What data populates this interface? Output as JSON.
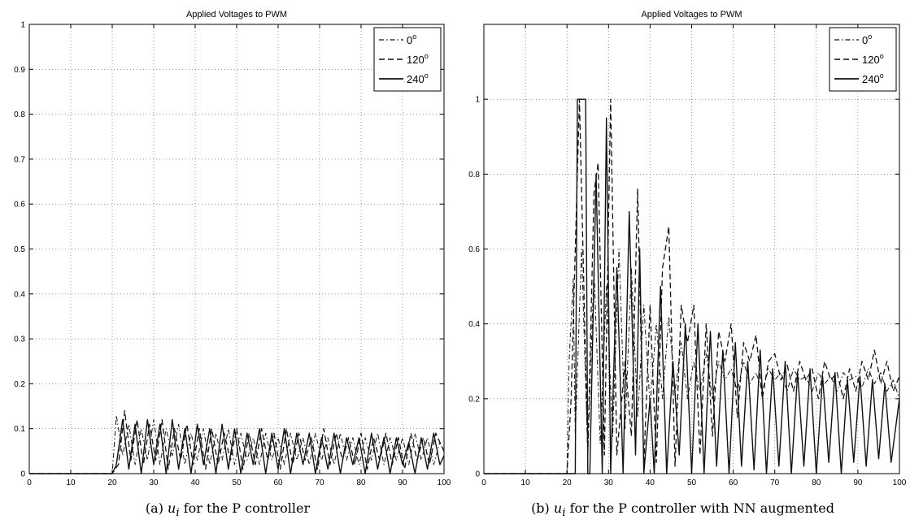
{
  "chart_data": [
    {
      "type": "line",
      "title": "Applied Voltages to PWM",
      "caption_prefix": "(a)",
      "caption_var": "u",
      "caption_sub": "i",
      "caption_text": "for the P controller",
      "xlim": [
        0,
        100
      ],
      "ylim": [
        0,
        1
      ],
      "xticks": [
        0,
        10,
        20,
        30,
        40,
        50,
        60,
        70,
        80,
        90,
        100
      ],
      "yticks": [
        0,
        0.1,
        0.2,
        0.3,
        0.4,
        0.5,
        0.6,
        0.7,
        0.8,
        0.9,
        1
      ],
      "ytick_labels": [
        "0",
        "0.1",
        "0.2",
        "0.3",
        "0.4",
        "0.5",
        "0.6",
        "0.7",
        "0.8",
        "0.9",
        "1"
      ],
      "grid": true,
      "legend_position": "top-right",
      "series": [
        {
          "name": "0",
          "degree": "o",
          "style": "dashdot",
          "x": [
            0,
            20,
            21,
            22.5,
            24,
            25.5,
            27,
            28.5,
            30,
            31.5,
            33,
            34.5,
            36,
            37.5,
            39,
            40.5,
            42,
            43.5,
            45,
            46.5,
            48,
            49.5,
            51,
            52.5,
            54,
            55.5,
            57,
            58.5,
            60,
            61.5,
            63,
            64.5,
            66,
            67.5,
            69,
            70.5,
            72,
            73.5,
            75,
            76.5,
            78,
            79.5,
            81,
            82.5,
            84,
            85.5,
            87,
            88.5,
            90,
            91.5,
            93,
            94.5,
            96,
            97.5,
            99,
            100
          ],
          "y": [
            0,
            0,
            0.13,
            0.04,
            0.11,
            0.02,
            0.1,
            0.03,
            0.12,
            0.02,
            0.1,
            0.04,
            0.11,
            0.02,
            0.09,
            0.03,
            0.1,
            0.02,
            0.09,
            0.03,
            0.1,
            0.02,
            0.09,
            0.03,
            0.08,
            0.02,
            0.09,
            0.03,
            0.08,
            0.02,
            0.09,
            0.03,
            0.08,
            0.02,
            0.09,
            0.03,
            0.08,
            0.02,
            0.09,
            0.03,
            0.08,
            0.02,
            0.08,
            0.03,
            0.09,
            0.02,
            0.08,
            0.03,
            0.08,
            0.02,
            0.09,
            0.03,
            0.08,
            0.02,
            0.07,
            0.05
          ]
        },
        {
          "name": "120",
          "degree": "o",
          "style": "dashed",
          "x": [
            0,
            20,
            21.5,
            23,
            24.5,
            26,
            27.5,
            29,
            30.5,
            32,
            33.5,
            35,
            36.5,
            38,
            39.5,
            41,
            42.5,
            44,
            45.5,
            47,
            48.5,
            50,
            51.5,
            53,
            54.5,
            56,
            57.5,
            59,
            60.5,
            62,
            63.5,
            65,
            66.5,
            68,
            69.5,
            71,
            72.5,
            74,
            75.5,
            77,
            78.5,
            80,
            81.5,
            83,
            84.5,
            86,
            87.5,
            89,
            90.5,
            92,
            93.5,
            95,
            96.5,
            98,
            100
          ],
          "y": [
            0,
            0,
            0.02,
            0.14,
            0.03,
            0.12,
            0.02,
            0.11,
            0.03,
            0.12,
            0.01,
            0.1,
            0.03,
            0.11,
            0.02,
            0.1,
            0.01,
            0.1,
            0.02,
            0.09,
            0.03,
            0.1,
            0.01,
            0.09,
            0.02,
            0.1,
            0.03,
            0.09,
            0.01,
            0.1,
            0.02,
            0.09,
            0.03,
            0.08,
            0.01,
            0.1,
            0.02,
            0.09,
            0.03,
            0.08,
            0.02,
            0.09,
            0.01,
            0.08,
            0.03,
            0.09,
            0.02,
            0.08,
            0.01,
            0.09,
            0.03,
            0.08,
            0.02,
            0.09,
            0.05
          ]
        },
        {
          "name": "240",
          "degree": "o",
          "style": "solid",
          "x": [
            0,
            20,
            21,
            22.5,
            24,
            25.5,
            27,
            28.5,
            30,
            31.5,
            33,
            34.5,
            36,
            37.5,
            39,
            40.5,
            42,
            43.5,
            45,
            46.5,
            48,
            49.5,
            51,
            52.5,
            54,
            55.5,
            57,
            58.5,
            60,
            61.5,
            63,
            64.5,
            66,
            67.5,
            69,
            70.5,
            72,
            73.5,
            75,
            76.5,
            78,
            79.5,
            81,
            82.5,
            84,
            85.5,
            87,
            88.5,
            90,
            91.5,
            93,
            94.5,
            96,
            97.5,
            99,
            100
          ],
          "y": [
            0,
            0,
            0.02,
            0.12,
            0.01,
            0.11,
            0.0,
            0.12,
            0.02,
            0.11,
            0.0,
            0.12,
            0.01,
            0.1,
            0.0,
            0.11,
            0.02,
            0.1,
            0.0,
            0.11,
            0.01,
            0.1,
            0.0,
            0.09,
            0.02,
            0.1,
            0.0,
            0.09,
            0.01,
            0.1,
            0.0,
            0.09,
            0.02,
            0.09,
            0.0,
            0.08,
            0.01,
            0.09,
            0.0,
            0.08,
            0.02,
            0.08,
            0.0,
            0.09,
            0.01,
            0.08,
            0.0,
            0.08,
            0.02,
            0.07,
            0.0,
            0.08,
            0.01,
            0.09,
            0.02,
            0.04
          ]
        }
      ]
    },
    {
      "type": "line",
      "title": "Applied Voltages to PWM",
      "caption_prefix": "(b)",
      "caption_var": "u",
      "caption_sub": "i",
      "caption_text": "for the P controller with NN augmented",
      "xlim": [
        0,
        100
      ],
      "ylim": [
        0,
        1.2
      ],
      "xticks": [
        0,
        10,
        20,
        30,
        40,
        50,
        60,
        70,
        80,
        90,
        100
      ],
      "yticks": [
        0,
        0.2,
        0.4,
        0.6,
        0.8,
        1
      ],
      "ytick_labels": [
        "0",
        "0.2",
        "0.4",
        "0.6",
        "0.8",
        "1"
      ],
      "grid": true,
      "legend_position": "top-right",
      "series": [
        {
          "name": "0",
          "degree": "o",
          "style": "dashdot",
          "x": [
            0,
            20,
            20.5,
            21.5,
            22,
            23.5,
            25,
            26.5,
            28,
            29.5,
            31,
            32.5,
            34,
            35.5,
            37,
            38.5,
            40,
            41.5,
            43,
            44.5,
            46,
            47.5,
            49,
            50.5,
            52,
            53.5,
            55,
            56.5,
            58,
            59.5,
            61,
            62.5,
            64,
            65.5,
            67,
            68.5,
            70,
            71.5,
            73,
            74.5,
            76,
            77.5,
            79,
            80.5,
            82,
            83.5,
            85,
            86.5,
            88,
            89.5,
            91,
            92.5,
            94,
            95.5,
            97,
            98.5,
            100
          ],
          "y": [
            0,
            0,
            0.3,
            0.52,
            0.1,
            0.6,
            0.05,
            0.55,
            0.08,
            0.5,
            0.1,
            0.6,
            0.12,
            0.55,
            0.15,
            0.45,
            0.18,
            0.4,
            0.2,
            0.42,
            0.22,
            0.35,
            0.2,
            0.3,
            0.22,
            0.32,
            0.2,
            0.3,
            0.25,
            0.28,
            0.22,
            0.3,
            0.24,
            0.27,
            0.22,
            0.28,
            0.25,
            0.27,
            0.22,
            0.28,
            0.25,
            0.26,
            0.22,
            0.27,
            0.24,
            0.26,
            0.22,
            0.27,
            0.25,
            0.26,
            0.23,
            0.28,
            0.24,
            0.27,
            0.22,
            0.25,
            0.2
          ]
        },
        {
          "name": "120",
          "degree": "o",
          "style": "dashed",
          "x": [
            0,
            20,
            21,
            23,
            25,
            26.5,
            27.5,
            29,
            30.5,
            32,
            34,
            35.5,
            37,
            38.5,
            40,
            41.5,
            43,
            44.5,
            46,
            47.5,
            49,
            50.5,
            52,
            53.5,
            55,
            56.5,
            58,
            59.5,
            61,
            62.5,
            64,
            65.5,
            67,
            68.5,
            70,
            71.5,
            73,
            74.5,
            76,
            77.5,
            79,
            80.5,
            82,
            83.5,
            85,
            86.5,
            88,
            89.5,
            91,
            92.5,
            94,
            95.5,
            97,
            98.5,
            100
          ],
          "y": [
            0,
            0,
            0.2,
            1.0,
            0.05,
            0.75,
            0.83,
            0.05,
            1.0,
            0.05,
            0.3,
            0.1,
            0.76,
            0.02,
            0.45,
            0.03,
            0.55,
            0.66,
            0.02,
            0.45,
            0.35,
            0.45,
            0.05,
            0.4,
            0.1,
            0.38,
            0.3,
            0.4,
            0.15,
            0.35,
            0.3,
            0.37,
            0.2,
            0.3,
            0.32,
            0.25,
            0.29,
            0.22,
            0.3,
            0.25,
            0.28,
            0.2,
            0.3,
            0.25,
            0.27,
            0.2,
            0.28,
            0.22,
            0.3,
            0.25,
            0.33,
            0.24,
            0.3,
            0.22,
            0.26
          ]
        },
        {
          "name": "240",
          "degree": "o",
          "style": "solid",
          "x": [
            0,
            22,
            22.5,
            24.5,
            25,
            25.5,
            27,
            28.5,
            29.5,
            30.5,
            32,
            33.5,
            35,
            36.5,
            37.5,
            38.5,
            40,
            41,
            42.5,
            44,
            45.5,
            47,
            48.5,
            50,
            51.5,
            53,
            54.5,
            56,
            57.5,
            59,
            60.5,
            62,
            63.5,
            65,
            66.5,
            68,
            69.5,
            71,
            72.5,
            74,
            75.5,
            77,
            78.5,
            80,
            81.5,
            83,
            84.5,
            86,
            87.5,
            89,
            90.5,
            92,
            93.5,
            95,
            96.5,
            98,
            100
          ],
          "y": [
            0,
            0,
            1.0,
            1.0,
            0.0,
            0.0,
            0.8,
            0.0,
            0.95,
            0.0,
            0.55,
            0.0,
            0.7,
            0.05,
            0.6,
            0.0,
            0.2,
            0.0,
            0.5,
            0.0,
            0.3,
            0.05,
            0.4,
            0.0,
            0.4,
            0.0,
            0.38,
            0.02,
            0.33,
            0.0,
            0.35,
            0.02,
            0.3,
            0.01,
            0.33,
            0.0,
            0.28,
            0.02,
            0.3,
            0.0,
            0.27,
            0.02,
            0.28,
            0.0,
            0.26,
            0.03,
            0.27,
            0.0,
            0.25,
            0.03,
            0.26,
            0.02,
            0.25,
            0.04,
            0.24,
            0.03,
            0.2
          ]
        }
      ]
    }
  ]
}
